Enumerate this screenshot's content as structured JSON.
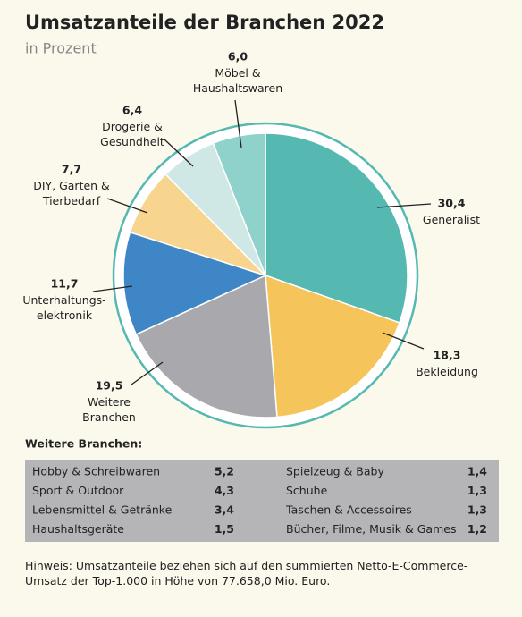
{
  "chart_data": {
    "type": "pie",
    "title": "Umsatzanteile der Branchen 2022",
    "subtitle": "in Prozent",
    "categories": [
      "Generalist",
      "Bekleidung",
      "Weitere\nBranchen",
      "Unterhaltungs-\nelektronik",
      "DIY, Garten &\nTierbedarf",
      "Drogerie &\nGesundheit",
      "Möbel &\nHaushaltswaren"
    ],
    "values": [
      30.4,
      18.3,
      19.5,
      11.7,
      7.7,
      6.4,
      6.0
    ],
    "value_labels": [
      "30,4",
      "18,3",
      "19,5",
      "11,7",
      "7,7",
      "6,4",
      "6,0"
    ],
    "colors": [
      "#55b8b1",
      "#f5c55c",
      "#a9a9ad",
      "#3f86c6",
      "#f7d58f",
      "#cfe8e6",
      "#8fd1cb"
    ]
  },
  "table": {
    "title": "Weitere Branchen:",
    "rows": [
      [
        "Hobby & Schreibwaren",
        "5,2",
        "Spielzeug & Baby",
        "1,4"
      ],
      [
        "Sport & Outdoor",
        "4,3",
        "Schuhe",
        "1,3"
      ],
      [
        "Lebensmittel & Getränke",
        "3,4",
        "Taschen & Accessoires",
        "1,3"
      ],
      [
        "Haushaltsgeräte",
        "1,5",
        "Bücher, Filme, Musik & Games",
        "1,2"
      ]
    ]
  },
  "footnote": "Hinweis: Umsatzanteile beziehen sich auf den summierten Netto-E-Commerce-Umsatz der Top-1.000 in Höhe von 77.658,0 Mio. Euro."
}
